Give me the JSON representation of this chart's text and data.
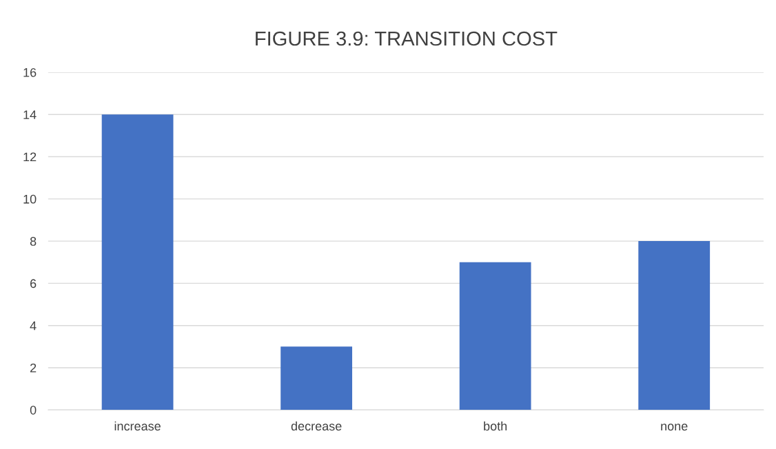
{
  "chart_data": {
    "type": "bar",
    "title": "FIGURE 3.9: TRANSITION COST",
    "categories": [
      "increase",
      "decrease",
      "both",
      "none"
    ],
    "values": [
      14,
      3,
      7,
      8
    ],
    "color": "#4472c4",
    "ylim": [
      0,
      16
    ],
    "yticks": [
      0,
      2,
      4,
      6,
      8,
      10,
      12,
      14,
      16
    ],
    "grid": "y",
    "legend": false
  }
}
